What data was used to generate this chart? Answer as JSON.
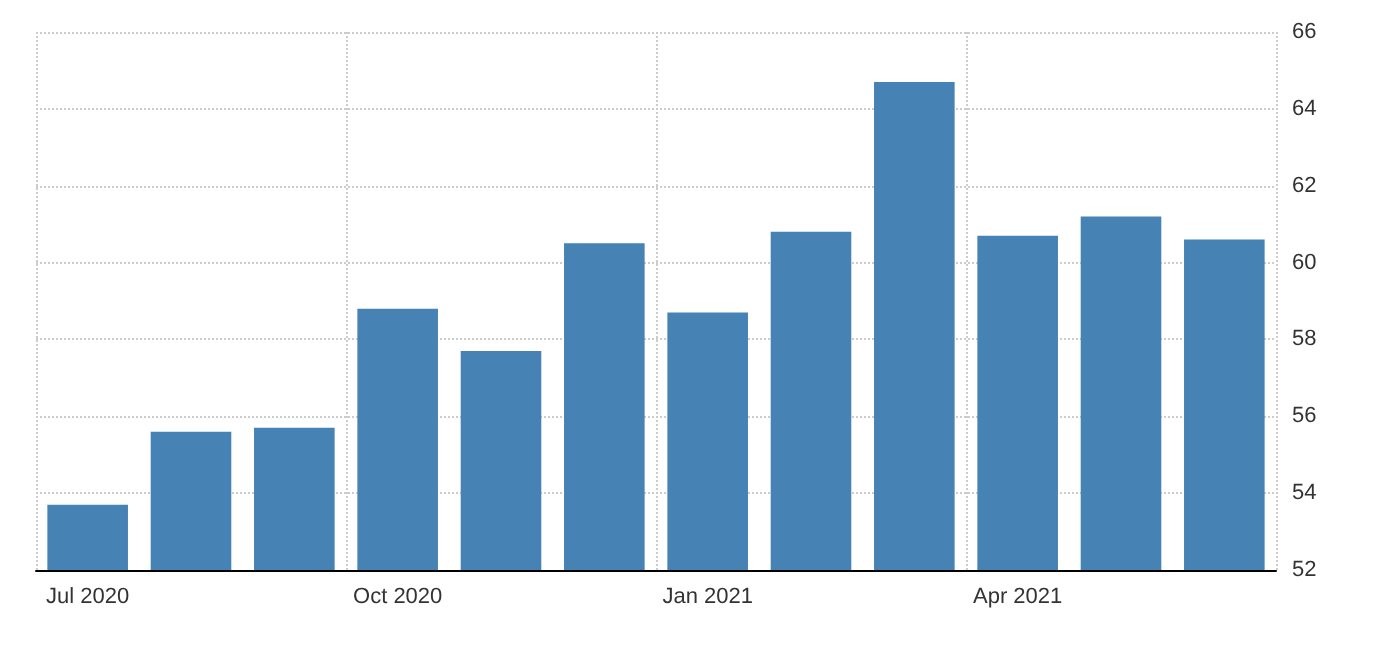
{
  "chart_data": {
    "type": "bar",
    "categories": [
      "Jul 2020",
      null,
      null,
      "Oct 2020",
      null,
      null,
      "Jan 2021",
      null,
      null,
      "Apr 2021",
      null,
      null
    ],
    "values": [
      53.7,
      55.6,
      55.7,
      58.8,
      57.7,
      60.5,
      58.7,
      60.8,
      64.7,
      60.7,
      61.2,
      60.6
    ],
    "color": "#4682b4",
    "ylim": [
      52,
      66
    ],
    "yticks": [
      52,
      54,
      56,
      58,
      60,
      62,
      64,
      66
    ],
    "grid": true
  }
}
